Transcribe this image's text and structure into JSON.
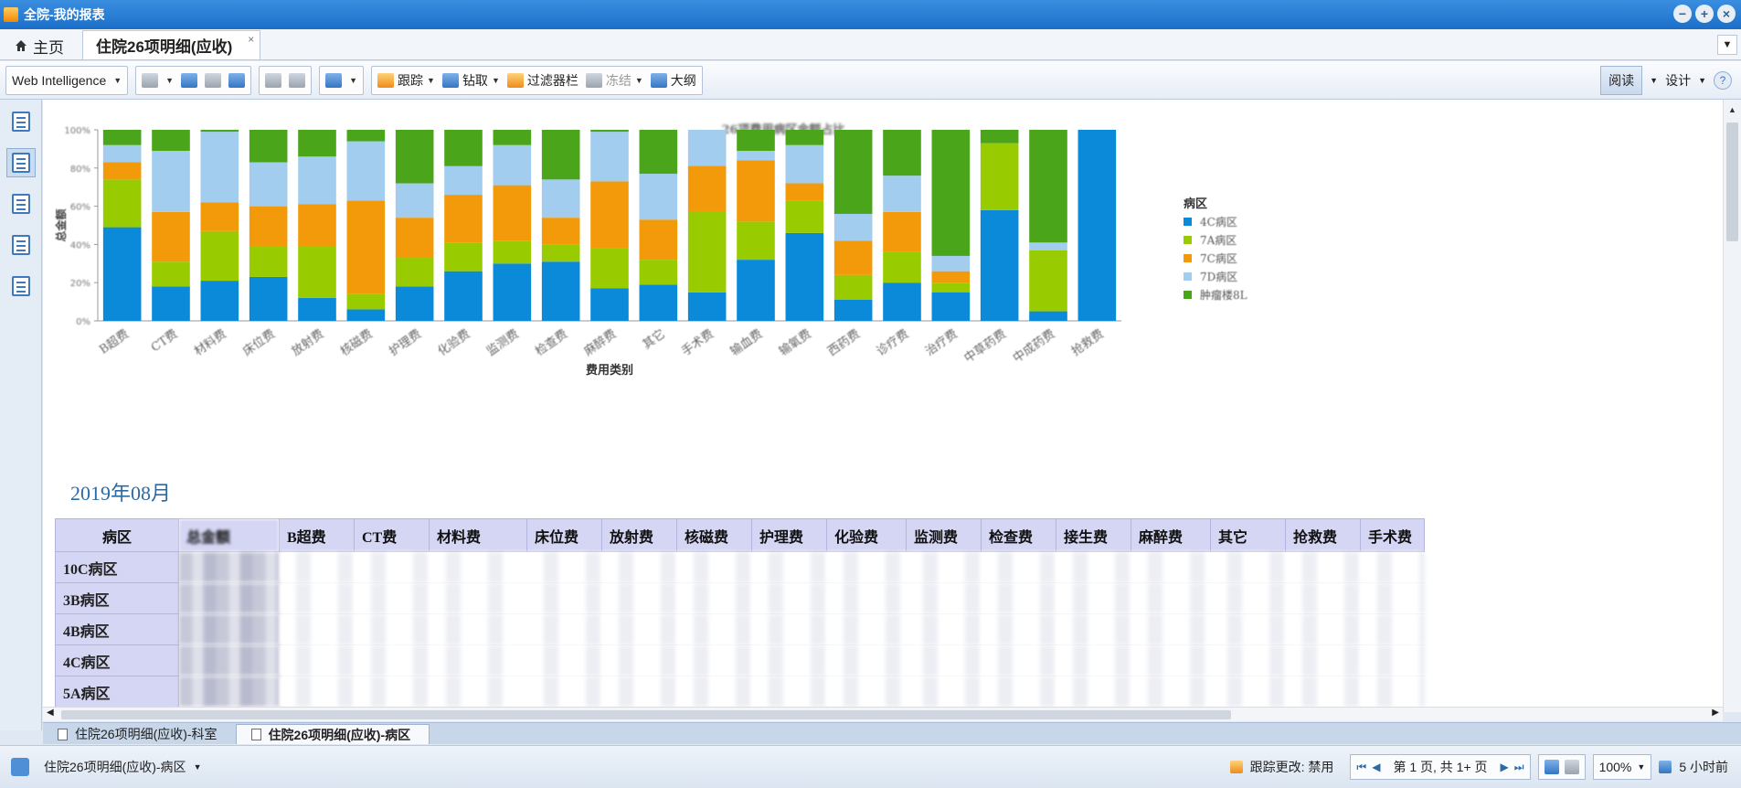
{
  "window": {
    "title": "全院-我的报表"
  },
  "doc_tabs": {
    "home": "主页",
    "active_doc": "住院26项明细(应收)",
    "close": "×"
  },
  "toolbar": {
    "app_menu": "Web Intelligence",
    "track": "跟踪",
    "drill": "钻取",
    "filter_bar": "过滤器栏",
    "freeze": "冻结",
    "outline": "大纲",
    "read": "阅读",
    "design": "设计"
  },
  "chart_data": {
    "type": "bar",
    "stacked": true,
    "normalized": true,
    "title": "26项费用病区金额占比",
    "xlabel": "费用类别",
    "ylabel": "总金额",
    "yticks": [
      "0%",
      "20%",
      "40%",
      "60%",
      "80%",
      "100%"
    ],
    "legend_title": "病区",
    "legend_position": "right",
    "categories": [
      "B超费",
      "CT费",
      "材料费",
      "床位费",
      "放射费",
      "核磁费",
      "护理费",
      "化验费",
      "监测费",
      "检查费",
      "麻醉费",
      "其它",
      "手术费",
      "输血费",
      "输氧费",
      "西药费",
      "诊疗费",
      "治疗费",
      "中草药费",
      "中成药费",
      "抢救费"
    ],
    "series": [
      {
        "name": "4C病区",
        "color": "#0a8ad8",
        "values": [
          49,
          18,
          21,
          23,
          12,
          6,
          18,
          26,
          30,
          31,
          17,
          19,
          15,
          32,
          46,
          11,
          20,
          15,
          58,
          5,
          100
        ]
      },
      {
        "name": "7A病区",
        "color": "#99cc00",
        "values": [
          25,
          13,
          26,
          16,
          27,
          8,
          15,
          15,
          12,
          9,
          21,
          13,
          43,
          20,
          17,
          13,
          16,
          5,
          35,
          32,
          0
        ]
      },
      {
        "name": "7C病区",
        "color": "#f29a0a",
        "values": [
          9,
          26,
          15,
          21,
          22,
          49,
          21,
          25,
          29,
          14,
          35,
          21,
          24,
          32,
          9,
          18,
          21,
          6,
          0,
          0,
          0
        ]
      },
      {
        "name": "7D病区",
        "color": "#a2cdee",
        "values": [
          9,
          32,
          37,
          23,
          25,
          31,
          18,
          15,
          21,
          20,
          26,
          24,
          19,
          5,
          20,
          14,
          19,
          8,
          0,
          4,
          0
        ]
      },
      {
        "name": "肿瘤楼8L",
        "color": "#4aa51a",
        "values": [
          8,
          11,
          1,
          17,
          14,
          6,
          28,
          19,
          8,
          26,
          1,
          23,
          0,
          11,
          8,
          44,
          24,
          66,
          7,
          59,
          0
        ]
      }
    ]
  },
  "month_label": "2019年08月",
  "table": {
    "headers": [
      "病区",
      "总金额",
      "B超费",
      "CT费",
      "材料费",
      "床位费",
      "放射费",
      "核磁费",
      "护理费",
      "化验费",
      "监测费",
      "检查费",
      "接生费",
      "麻醉费",
      "其它",
      "抢救费",
      "手术费"
    ],
    "rows": [
      "10C病区",
      "3B病区",
      "4B病区",
      "4C病区",
      "5A病区"
    ]
  },
  "report_tabs": [
    {
      "label": "住院26项明细(应收)-科室"
    },
    {
      "label": "住院26项明细(应收)-病区"
    }
  ],
  "status": {
    "report_name": "住院26项明细(应收)-病区",
    "track_changes": "跟踪更改: 禁用",
    "page": "第 1 页, 共 1+ 页",
    "zoom": "100%",
    "refresh_time": "5 小时前"
  }
}
